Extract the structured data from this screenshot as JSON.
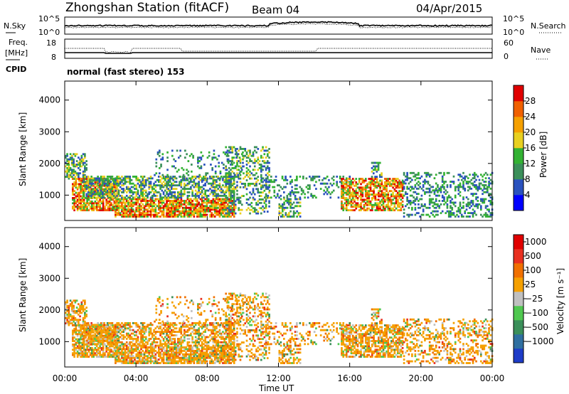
{
  "header": {
    "station": "Zhongshan Station (fitACF)",
    "beam": "Beam 04",
    "date": "04/Apr/2015"
  },
  "noise_panel": {
    "left_label": "N.Sky",
    "right_label": "N.Search",
    "ticks_left": [
      "10^5",
      "10^0"
    ],
    "ticks_right": [
      "10^5",
      "10^0"
    ]
  },
  "freq_panel": {
    "left_label": "Freq.",
    "unit": "[MHz]",
    "right_label": "Nave",
    "ticks_left": [
      "18",
      "8"
    ],
    "ticks_right": [
      "60",
      "0"
    ]
  },
  "cpid": {
    "label": "CPID",
    "mode": "normal (fast stereo) 153"
  },
  "chart_data": [
    {
      "type": "heatmap",
      "quantity": "Power",
      "ylabel": "Slant Range [km]",
      "yticks": [
        "1000",
        "2000",
        "3000",
        "4000"
      ],
      "ylim": [
        200,
        4600
      ],
      "xlim_hours": [
        0,
        24
      ],
      "colorbar_label": "Power [dB]",
      "colorbar_ticks": [
        "4",
        "8",
        "12",
        "16",
        "20",
        "24",
        "28"
      ],
      "colorbar_colors": [
        "#0000ff",
        "#2a52be",
        "#3b8f5a",
        "#33b233",
        "#e8d020",
        "#f5a000",
        "#f06000",
        "#e00000"
      ]
    },
    {
      "type": "heatmap",
      "quantity": "Velocity",
      "ylabel": "Slant Range [km]",
      "yticks": [
        "1000",
        "2000",
        "3000",
        "4000"
      ],
      "ylim": [
        200,
        4600
      ],
      "xlim_hours": [
        0,
        24
      ],
      "colorbar_label": "Velocity [m s⁻¹]",
      "colorbar_ticks": [
        "1000",
        "500",
        "100",
        "25",
        "−25",
        "−100",
        "−500",
        "−1000"
      ],
      "colorbar_colors": [
        "#1e3cc8",
        "#2f6fa0",
        "#3b8f5a",
        "#50c850",
        "#c0c0c0",
        "#f5a000",
        "#f07000",
        "#e83020",
        "#e00000"
      ]
    }
  ],
  "time_axis": {
    "ticks": [
      "00:00",
      "04:00",
      "08:00",
      "12:00",
      "16:00",
      "20:00",
      "00:00"
    ],
    "label": "Time UT"
  }
}
